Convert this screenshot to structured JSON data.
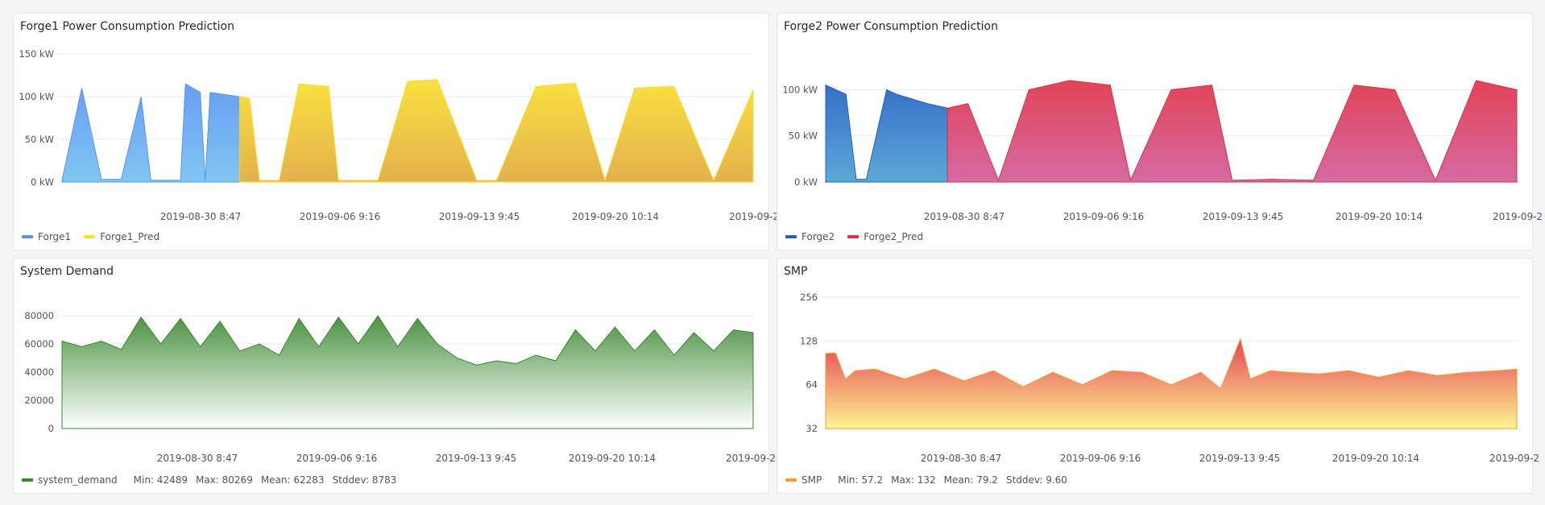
{
  "panels": {
    "forge1": {
      "title": "Forge1 Power Consumption Prediction",
      "legend": [
        {
          "label": "Forge1",
          "color": "#5794f2"
        },
        {
          "label": "Forge1_Pred",
          "color": "#fade2a"
        }
      ]
    },
    "forge2": {
      "title": "Forge2 Power Consumption Prediction",
      "legend": [
        {
          "label": "Forge2",
          "color": "#1f60c4"
        },
        {
          "label": "Forge2_Pred",
          "color": "#e02f44"
        }
      ]
    },
    "system_demand": {
      "title": "System Demand",
      "legend": [
        {
          "label": "system_demand",
          "color": "#37872d"
        }
      ],
      "stats": {
        "min": "Min: 42489",
        "max": "Max: 80269",
        "mean": "Mean: 62283",
        "stddev": "Stddev: 8783"
      }
    },
    "smp": {
      "title": "SMP",
      "legend": [
        {
          "label": "SMP",
          "color": "#ff9830"
        }
      ],
      "stats": {
        "min": "Min: 57.2",
        "max": "Max: 132",
        "mean": "Mean: 79.2",
        "stddev": "Stddev: 9.60"
      }
    }
  },
  "chart_data": [
    {
      "type": "area",
      "title": "Forge1 Power Consumption Prediction",
      "y_ticks": [
        "0 kW",
        "50 kW",
        "100 kW",
        "150 kW"
      ],
      "ylim": [
        0,
        150
      ],
      "x_ticks": [
        "2019-08-30 8:47",
        "2019-09-06 9:16",
        "2019-09-13 9:45",
        "2019-09-20 10:14",
        "2019-09-2"
      ],
      "grid": true,
      "legend_position": "bottom-left",
      "series": [
        {
          "name": "Forge1",
          "color": "#5794f2",
          "x": [
            0,
            2,
            4,
            5,
            6,
            8,
            9,
            12,
            12.5,
            14,
            14.5,
            15,
            18
          ],
          "y": [
            2,
            110,
            3,
            3,
            3,
            100,
            2,
            2,
            115,
            105,
            2,
            105,
            100
          ]
        },
        {
          "name": "Forge1_Pred",
          "color": "#fade2a",
          "x": [
            18,
            19,
            20,
            22,
            24,
            27,
            28,
            32,
            35,
            38,
            42,
            44,
            48,
            52,
            55,
            58,
            62,
            66,
            70
          ],
          "y": [
            100,
            98,
            2,
            2,
            115,
            112,
            2,
            2,
            118,
            120,
            2,
            2,
            112,
            116,
            2,
            110,
            112,
            2,
            108
          ]
        }
      ]
    },
    {
      "type": "area",
      "title": "Forge2 Power Consumption Prediction",
      "y_ticks": [
        "0 kW",
        "50 kW",
        "100 kW"
      ],
      "ylim": [
        0,
        130
      ],
      "x_ticks": [
        "2019-08-30 8:47",
        "2019-09-06 9:16",
        "2019-09-13 9:45",
        "2019-09-20 10:14",
        "2019-09-2"
      ],
      "grid": true,
      "legend_position": "bottom-left",
      "series": [
        {
          "name": "Forge2",
          "color": "#1f60c4",
          "x": [
            0,
            2,
            3,
            4,
            6,
            7,
            10,
            12
          ],
          "y": [
            105,
            95,
            3,
            3,
            100,
            95,
            85,
            80
          ]
        },
        {
          "name": "Forge2_Pred",
          "color": "#e02f44",
          "x": [
            12,
            14,
            17,
            20,
            24,
            28,
            30,
            34,
            38,
            40,
            44,
            48,
            52,
            56,
            60,
            64,
            68
          ],
          "y": [
            80,
            85,
            2,
            100,
            110,
            105,
            2,
            100,
            105,
            2,
            3,
            2,
            105,
            100,
            2,
            110,
            100
          ]
        }
      ]
    },
    {
      "type": "area",
      "title": "System Demand",
      "y_ticks": [
        "0",
        "20000",
        "40000",
        "60000",
        "80000"
      ],
      "ylim": [
        0,
        88000
      ],
      "x_ticks": [
        "2019-08-30 8:47",
        "2019-09-06 9:16",
        "2019-09-13 9:45",
        "2019-09-20 10:14",
        "2019-09-2"
      ],
      "grid": true,
      "legend_position": "bottom-left",
      "series": [
        {
          "name": "system_demand",
          "color": "#37872d",
          "x": [
            0,
            2,
            4,
            6,
            8,
            10,
            12,
            14,
            16,
            18,
            20,
            22,
            24,
            26,
            28,
            30,
            32,
            34,
            36,
            38,
            40,
            42,
            44,
            46,
            48,
            50,
            52,
            54,
            56,
            58,
            60,
            62,
            64,
            66,
            68,
            70
          ],
          "y": [
            62000,
            58000,
            62000,
            56000,
            79000,
            60000,
            78000,
            58000,
            76000,
            55000,
            60000,
            52000,
            78000,
            58000,
            79000,
            60000,
            80000,
            58000,
            78000,
            60000,
            50000,
            45000,
            48000,
            46000,
            52000,
            48000,
            70000,
            55000,
            72000,
            55000,
            70000,
            52000,
            68000,
            55000,
            70000,
            68000
          ]
        }
      ]
    },
    {
      "type": "area",
      "title": "SMP",
      "y_ticks": [
        "32",
        "64",
        "128",
        "256"
      ],
      "ylim": [
        32,
        256
      ],
      "y_scale": "log2",
      "x_ticks": [
        "2019-08-30 8:47",
        "2019-09-06 9:16",
        "2019-09-13 9:45",
        "2019-09-20 10:14",
        "2019-09-2"
      ],
      "grid": true,
      "legend_position": "bottom-left",
      "series": [
        {
          "name": "SMP",
          "color": "#ff9830",
          "x": [
            0,
            1,
            2,
            3,
            5,
            8,
            11,
            14,
            17,
            20,
            23,
            26,
            29,
            32,
            35,
            38,
            40,
            42,
            43,
            45,
            47,
            50,
            53,
            56,
            59,
            62,
            65,
            68,
            70
          ],
          "y": [
            105,
            106,
            70,
            80,
            82,
            70,
            82,
            68,
            80,
            62,
            78,
            64,
            80,
            78,
            64,
            78,
            60,
            132,
            70,
            80,
            78,
            76,
            80,
            72,
            80,
            74,
            78,
            80,
            82
          ]
        }
      ]
    }
  ]
}
